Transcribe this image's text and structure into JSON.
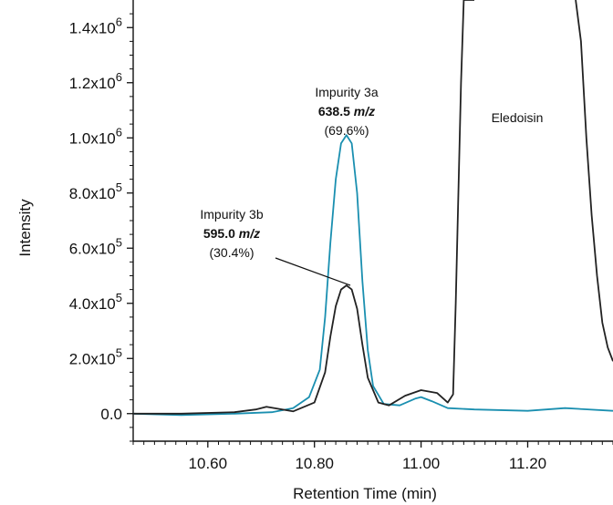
{
  "chart_data": {
    "type": "line",
    "title": "",
    "xlabel": "Retention Time (min)",
    "ylabel": "Intensity",
    "xlim": [
      10.46,
      11.36
    ],
    "ylim": [
      -100000,
      1500000
    ],
    "x_ticks": [
      {
        "value": 10.6,
        "label": "10.60"
      },
      {
        "value": 10.8,
        "label": "10.80"
      },
      {
        "value": 11.0,
        "label": "11.00"
      },
      {
        "value": 11.2,
        "label": "11.20"
      }
    ],
    "y_ticks": [
      {
        "value": 0,
        "mant": "0.0",
        "exp": ""
      },
      {
        "value": 200000,
        "mant": "2.0x10",
        "exp": "5"
      },
      {
        "value": 400000,
        "mant": "4.0x10",
        "exp": "5"
      },
      {
        "value": 600000,
        "mant": "6.0x10",
        "exp": "5"
      },
      {
        "value": 800000,
        "mant": "8.0x10",
        "exp": "5"
      },
      {
        "value": 1000000,
        "mant": "1.0x10",
        "exp": "6"
      },
      {
        "value": 1200000,
        "mant": "1.2x10",
        "exp": "6"
      },
      {
        "value": 1400000,
        "mant": "1.4x10",
        "exp": "6"
      }
    ],
    "series": [
      {
        "color": "#1a8fb0",
        "x": [
          10.46,
          10.55,
          10.65,
          10.72,
          10.76,
          10.79,
          10.81,
          10.82,
          10.83,
          10.84,
          10.85,
          10.86,
          10.87,
          10.88,
          10.89,
          10.9,
          10.91,
          10.93,
          10.96,
          10.99,
          11.0,
          11.02,
          11.05,
          11.1,
          11.2,
          11.27,
          11.36
        ],
        "y": [
          0,
          -5000,
          0,
          5000,
          20000,
          60000,
          160000,
          350000,
          620000,
          850000,
          980000,
          1010000,
          980000,
          800000,
          480000,
          230000,
          100000,
          35000,
          30000,
          55000,
          60000,
          45000,
          20000,
          15000,
          10000,
          20000,
          10000
        ]
      },
      {
        "color": "#222222",
        "x": [
          10.46,
          10.55,
          10.65,
          10.69,
          10.71,
          10.73,
          10.76,
          10.8,
          10.82,
          10.83,
          10.84,
          10.85,
          10.86,
          10.87,
          10.88,
          10.89,
          10.9,
          10.92,
          10.94,
          10.97,
          11.0,
          11.03,
          11.05,
          11.06,
          11.065,
          11.07,
          11.075,
          11.08,
          11.09,
          11.1
        ],
        "y": [
          0,
          0,
          5000,
          15000,
          25000,
          18000,
          8000,
          40000,
          150000,
          280000,
          390000,
          450000,
          465000,
          450000,
          380000,
          250000,
          130000,
          40000,
          30000,
          65000,
          85000,
          75000,
          40000,
          70000,
          400000,
          800000,
          1200000,
          1500000,
          1500000,
          1500000
        ]
      },
      {
        "color": "#222222",
        "x": [
          11.29,
          11.3,
          11.31,
          11.32,
          11.33,
          11.34,
          11.35,
          11.36
        ],
        "y": [
          1500000,
          1350000,
          1000000,
          720000,
          500000,
          330000,
          240000,
          190000
        ]
      }
    ],
    "annotations": [
      {
        "name": "impurity-3a",
        "lines": [
          {
            "text": "Impurity 3a"
          },
          {
            "text": "638.5 ",
            "italic": "m/z",
            "bold": true
          },
          {
            "text": "(69.6%)"
          }
        ]
      },
      {
        "name": "impurity-3b",
        "lines": [
          {
            "text": "Impurity 3b"
          },
          {
            "text": "595.0 ",
            "italic": "m/z",
            "bold": true
          },
          {
            "text": "(30.4%)"
          }
        ]
      },
      {
        "name": "eledoisin",
        "lines": [
          {
            "text": "Eledoisin"
          }
        ]
      }
    ],
    "grid": false,
    "legend": "none"
  }
}
